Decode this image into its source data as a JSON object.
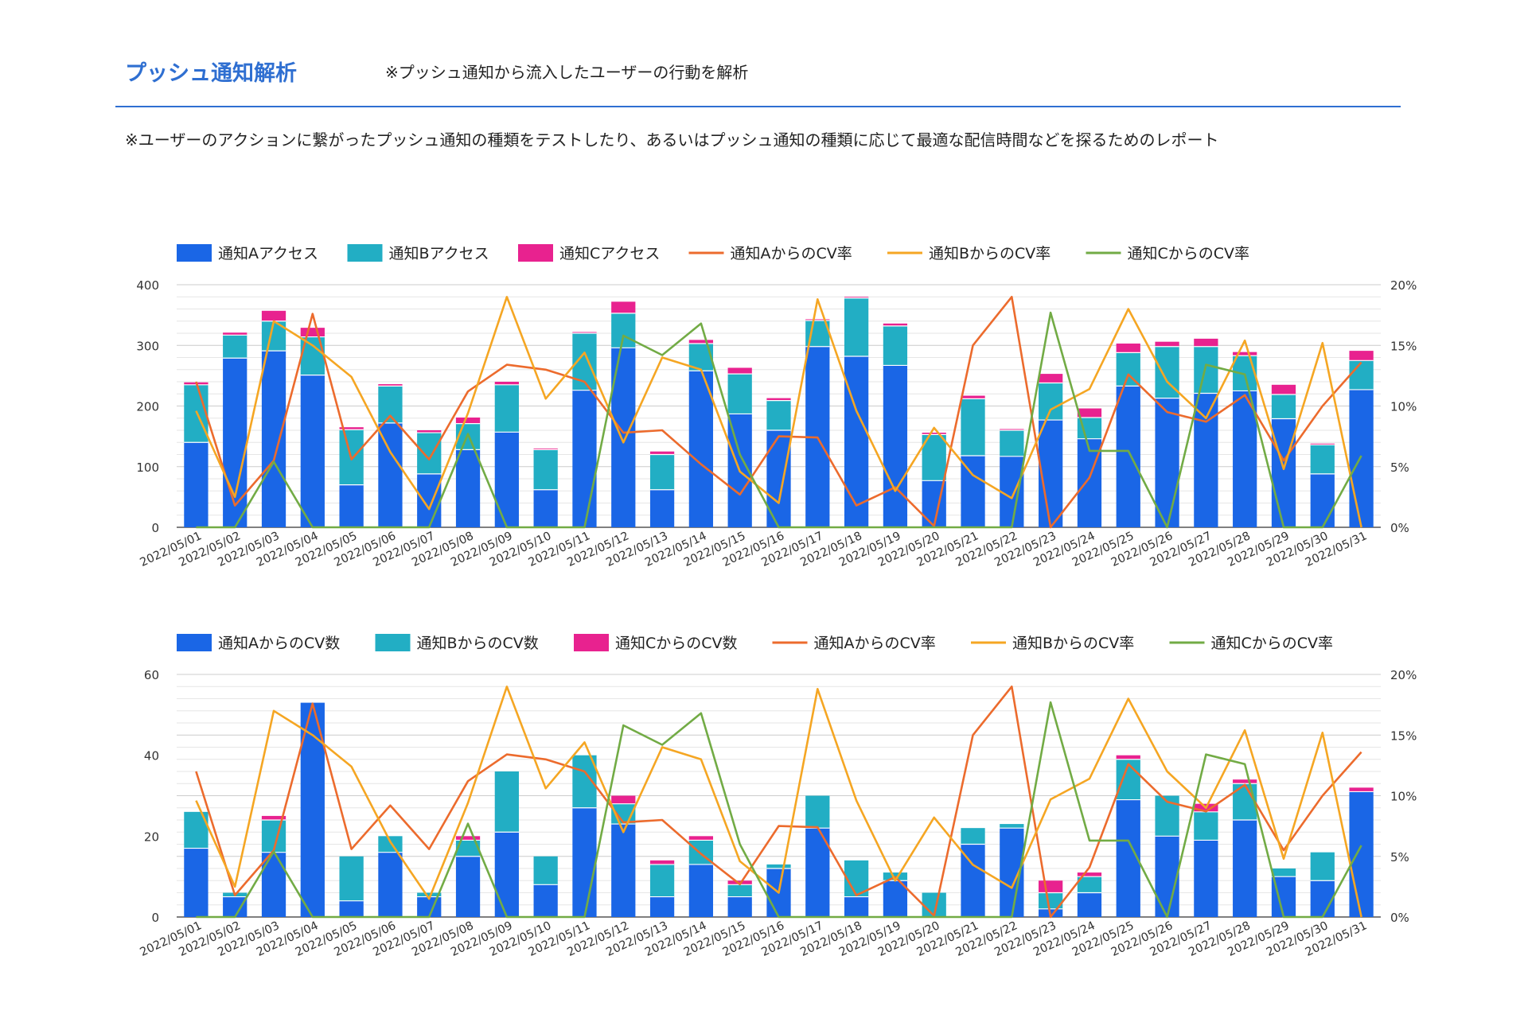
{
  "header": {
    "title": "プッシュ通知解析",
    "subtitle": "※プッシュ通知から流入したユーザーの行動を解析",
    "description": "※ユーザーのアクションに繋がったプッシュ通知の種類をテストしたり、あるいはプッシュ通知の種類に応じて最適な配信時間などを探るためのレポート"
  },
  "colors": {
    "a_bar": "#1a66e6",
    "b_bar": "#22aec4",
    "c_bar": "#e8228f",
    "a_line": "#ec6b2d",
    "b_line": "#f5a623",
    "c_line": "#72ab45",
    "title": "#2f6fd1"
  },
  "chart_data": [
    {
      "type": "bar",
      "stacked": true,
      "categories": [
        "2022/05/01",
        "2022/05/02",
        "2022/05/03",
        "2022/05/04",
        "2022/05/05",
        "2022/05/06",
        "2022/05/07",
        "2022/05/08",
        "2022/05/09",
        "2022/05/10",
        "2022/05/11",
        "2022/05/12",
        "2022/05/13",
        "2022/05/14",
        "2022/05/15",
        "2022/05/16",
        "2022/05/17",
        "2022/05/18",
        "2022/05/19",
        "2022/05/20",
        "2022/05/21",
        "2022/05/22",
        "2022/05/23",
        "2022/05/24",
        "2022/05/25",
        "2022/05/26",
        "2022/05/27",
        "2022/05/28",
        "2022/05/29",
        "2022/05/30",
        "2022/05/31"
      ],
      "ylim": [
        0,
        400
      ],
      "yticks": [
        "0",
        "100",
        "200",
        "300",
        "400"
      ],
      "y2lim": [
        0,
        20
      ],
      "y2ticks": [
        "0%",
        "5%",
        "10%",
        "15%",
        "20%"
      ],
      "legend_position": "top",
      "grid": true,
      "bar_series": [
        {
          "name": "通知Aアクセス",
          "color": "#1a66e6",
          "values": [
            140,
            279,
            291,
            251,
            70,
            172,
            88,
            128,
            157,
            62,
            226,
            296,
            62,
            258,
            187,
            160,
            298,
            282,
            267,
            77,
            118,
            117,
            177,
            146,
            233,
            213,
            221,
            225,
            179,
            88,
            227
          ]
        },
        {
          "name": "通知Bアクセス",
          "color": "#22aec4",
          "values": [
            95,
            38,
            49,
            63,
            91,
            61,
            68,
            43,
            78,
            66,
            94,
            57,
            58,
            45,
            66,
            49,
            43,
            96,
            65,
            76,
            94,
            43,
            61,
            35,
            55,
            85,
            77,
            58,
            40,
            48,
            48
          ]
        },
        {
          "name": "通知Cアクセス",
          "color": "#e8228f",
          "values": [
            4,
            4,
            17,
            15,
            4,
            3,
            4,
            10,
            5,
            2,
            2,
            19,
            5,
            6,
            10,
            4,
            2,
            2,
            4,
            3,
            5,
            2,
            15,
            15,
            15,
            8,
            13,
            6,
            16,
            2,
            16
          ]
        }
      ],
      "line_series": [
        {
          "name": "通知AからのCV率",
          "color": "#ec6b2d",
          "values": [
            12,
            1.8,
            5.5,
            17.6,
            5.6,
            9.2,
            5.6,
            11.2,
            13.4,
            13,
            12,
            7.8,
            8,
            5.2,
            2.7,
            7.5,
            7.4,
            1.8,
            3.3,
            0.1,
            15,
            19,
            0,
            4.1,
            12.6,
            9.5,
            8.7,
            10.9,
            5.5,
            10,
            13.6
          ]
        },
        {
          "name": "通知BからのCV率",
          "color": "#f5a623",
          "values": [
            9.6,
            2.5,
            17,
            15,
            12.4,
            6.2,
            1.5,
            9.4,
            19,
            10.6,
            14.4,
            7,
            14,
            13,
            4.6,
            2,
            18.8,
            9.6,
            3,
            8.2,
            4.3,
            2.4,
            9.7,
            11.4,
            18,
            12,
            9,
            15.4,
            4.8,
            15.2,
            0
          ]
        },
        {
          "name": "通知CからのCV率",
          "color": "#72ab45",
          "values": [
            0,
            0,
            5.4,
            0,
            0,
            0,
            0,
            7.7,
            0,
            0,
            0,
            15.8,
            14.2,
            16.8,
            6,
            0,
            0,
            0,
            0,
            0,
            0,
            0,
            17.7,
            6.3,
            6.3,
            0,
            13.4,
            12.6,
            0,
            0,
            5.9
          ]
        }
      ]
    },
    {
      "type": "bar",
      "stacked": true,
      "categories": [
        "2022/05/01",
        "2022/05/02",
        "2022/05/03",
        "2022/05/04",
        "2022/05/05",
        "2022/05/06",
        "2022/05/07",
        "2022/05/08",
        "2022/05/09",
        "2022/05/10",
        "2022/05/11",
        "2022/05/12",
        "2022/05/13",
        "2022/05/14",
        "2022/05/15",
        "2022/05/16",
        "2022/05/17",
        "2022/05/18",
        "2022/05/19",
        "2022/05/20",
        "2022/05/21",
        "2022/05/22",
        "2022/05/23",
        "2022/05/24",
        "2022/05/25",
        "2022/05/26",
        "2022/05/27",
        "2022/05/28",
        "2022/05/29",
        "2022/05/30",
        "2022/05/31"
      ],
      "ylim": [
        0,
        60
      ],
      "yticks": [
        "0",
        "20",
        "40",
        "60"
      ],
      "y2lim": [
        0,
        20
      ],
      "y2ticks": [
        "0%",
        "5%",
        "10%",
        "15%",
        "20%"
      ],
      "legend_position": "top",
      "grid": true,
      "bar_series": [
        {
          "name": "通知AからのCV数",
          "color": "#1a66e6",
          "values": [
            17,
            5,
            16,
            53,
            4,
            16,
            5,
            15,
            21,
            8,
            27,
            23,
            5,
            13,
            5,
            12,
            22,
            5,
            9,
            0,
            18,
            22,
            2,
            6,
            29,
            20,
            19,
            24,
            10,
            9,
            31
          ]
        },
        {
          "name": "通知BからのCV数",
          "color": "#22aec4",
          "values": [
            9,
            1,
            8,
            0,
            11,
            4,
            1,
            4,
            15,
            7,
            13,
            5,
            8,
            6,
            3,
            1,
            8,
            9,
            2,
            6,
            4,
            1,
            4,
            4,
            10,
            10,
            7,
            9,
            2,
            7,
            0
          ]
        },
        {
          "name": "通知CからのCV数",
          "color": "#e8228f",
          "values": [
            0,
            0,
            1,
            0,
            0,
            0,
            0,
            1,
            0,
            0,
            0,
            2,
            1,
            1,
            1,
            0,
            0,
            0,
            0,
            0,
            0,
            0,
            3,
            1,
            1,
            0,
            2,
            1,
            0,
            0,
            1
          ]
        }
      ],
      "line_series": [
        {
          "name": "通知AからのCV率",
          "color": "#ec6b2d",
          "values": [
            12,
            1.8,
            5.5,
            17.6,
            5.6,
            9.2,
            5.6,
            11.2,
            13.4,
            13,
            12,
            7.8,
            8,
            5.2,
            2.7,
            7.5,
            7.4,
            1.8,
            3.3,
            0.1,
            15,
            19,
            0,
            4.1,
            12.6,
            9.5,
            8.7,
            10.9,
            5.5,
            10,
            13.6
          ]
        },
        {
          "name": "通知BからのCV率",
          "color": "#f5a623",
          "values": [
            9.6,
            2.5,
            17,
            15,
            12.4,
            6.2,
            1.5,
            9.4,
            19,
            10.6,
            14.4,
            7,
            14,
            13,
            4.6,
            2,
            18.8,
            9.6,
            3,
            8.2,
            4.3,
            2.4,
            9.7,
            11.4,
            18,
            12,
            9,
            15.4,
            4.8,
            15.2,
            0
          ]
        },
        {
          "name": "通知CからのCV率",
          "color": "#72ab45",
          "values": [
            0,
            0,
            5.4,
            0,
            0,
            0,
            0,
            7.7,
            0,
            0,
            0,
            15.8,
            14.2,
            16.8,
            6,
            0,
            0,
            0,
            0,
            0,
            0,
            0,
            17.7,
            6.3,
            6.3,
            0,
            13.4,
            12.6,
            0,
            0,
            5.9
          ]
        }
      ]
    }
  ]
}
